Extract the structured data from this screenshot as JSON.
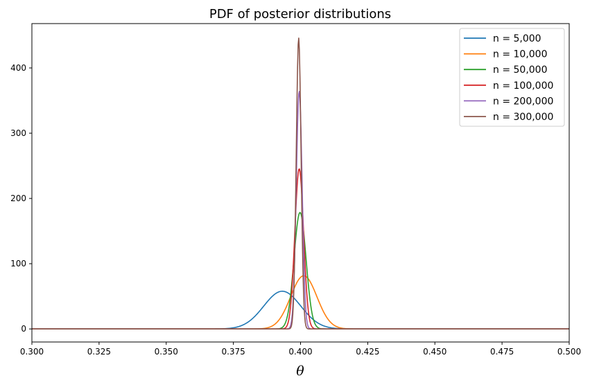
{
  "chart_data": {
    "type": "line",
    "title": "PDF of posterior distributions",
    "xlabel": "θ",
    "ylabel": "",
    "xlim": [
      0.3,
      0.5
    ],
    "ylim": [
      -20,
      468
    ],
    "xticks": [
      0.3,
      0.325,
      0.35,
      0.375,
      0.4,
      0.425,
      0.45,
      0.475,
      0.5
    ],
    "xtick_labels": [
      "0.300",
      "0.325",
      "0.350",
      "0.375",
      "0.400",
      "0.425",
      "0.450",
      "0.475",
      "0.500"
    ],
    "yticks": [
      0,
      100,
      200,
      300,
      400
    ],
    "ytick_labels": [
      "0",
      "100",
      "200",
      "300",
      "400"
    ],
    "grid": false,
    "legend_position": "top-right",
    "series": [
      {
        "name": "n = 5,000",
        "color": "#1f77b4",
        "mean": 0.3932,
        "peak": 57.8
      },
      {
        "name": "n = 10,000",
        "color": "#ff7f0e",
        "mean": 0.4012,
        "peak": 81.5
      },
      {
        "name": "n = 50,000",
        "color": "#2ca02c",
        "mean": 0.3998,
        "peak": 178.5
      },
      {
        "name": "n = 100,000",
        "color": "#d62728",
        "mean": 0.3995,
        "peak": 245.5
      },
      {
        "name": "n = 200,000",
        "color": "#9467bd",
        "mean": 0.3995,
        "peak": 364.5
      },
      {
        "name": "n = 300,000",
        "color": "#8c564b",
        "mean": 0.3993,
        "peak": 446.0
      }
    ]
  }
}
